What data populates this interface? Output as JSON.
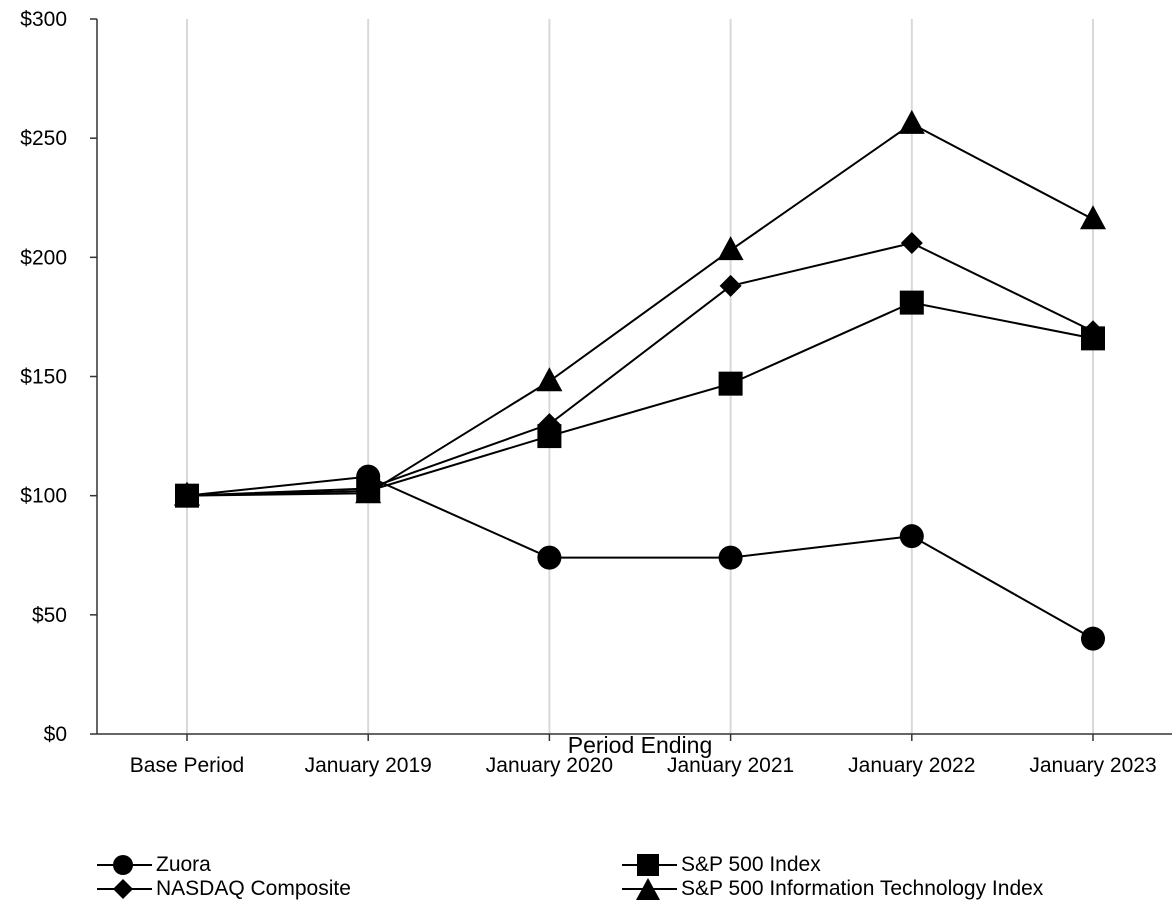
{
  "chart_data": {
    "type": "line",
    "categories": [
      "Base Period",
      "January 2019",
      "January 2020",
      "January 2021",
      "January 2022",
      "January 2023"
    ],
    "xlabel": "Period Ending",
    "ylabel": "",
    "ylim": [
      0,
      300
    ],
    "yticks": [
      0,
      50,
      100,
      150,
      200,
      250,
      300
    ],
    "ytick_labels": [
      "$0",
      "$50",
      "$100",
      "$150",
      "$200",
      "$250",
      "$300"
    ],
    "grid": "vertical",
    "legend_position": "bottom",
    "series": [
      {
        "name": "Zuora",
        "marker": "circle",
        "values": [
          100,
          108,
          74,
          74,
          83,
          40
        ]
      },
      {
        "name": "NASDAQ Composite",
        "marker": "diamond",
        "values": [
          100,
          103,
          130,
          188,
          206,
          169
        ]
      },
      {
        "name": "S&P 500 Index",
        "marker": "square",
        "values": [
          100,
          102,
          125,
          147,
          181,
          166
        ]
      },
      {
        "name": "S&P 500 Information Technology Index",
        "marker": "triangle",
        "values": [
          100,
          101,
          148,
          203,
          256,
          216
        ]
      }
    ],
    "colors": {
      "line": "#000000",
      "grid": "#d9d9d9",
      "axis": "#333333"
    }
  }
}
